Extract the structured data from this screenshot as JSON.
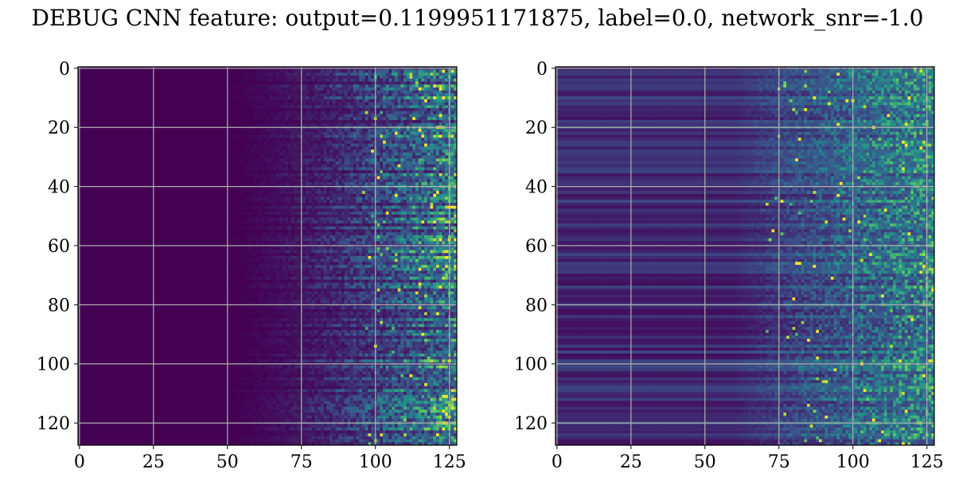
{
  "figure": {
    "title": "DEBUG CNN feature: output=0.1199951171875, label=0.0, network_snr=-1.0"
  },
  "chart_data": [
    {
      "type": "heatmap",
      "title": "",
      "xlabel": "",
      "ylabel": "",
      "rows": 128,
      "cols": 128,
      "colormap": "viridis",
      "colors": [
        "#440154",
        "#3b528b",
        "#21918c",
        "#5ec962",
        "#fde725"
      ],
      "xlim": [
        -0.5,
        127.5
      ],
      "ylim": [
        127.5,
        -0.5
      ],
      "y_inverted": true,
      "grid": true,
      "x_ticks": [
        0,
        25,
        50,
        75,
        100,
        125
      ],
      "y_ticks": [
        0,
        20,
        40,
        60,
        80,
        100,
        120
      ],
      "x_tick_labels": [
        "0",
        "25",
        "50",
        "75",
        "100",
        "125"
      ],
      "y_tick_labels": [
        "0",
        "20",
        "40",
        "60",
        "80",
        "100",
        "120"
      ],
      "pattern": "values near 0 for columns 0-45, increasing toward the right with strong horizontal banding; bright yellow speckles at columns 100-125",
      "value_range": [
        0,
        1
      ]
    },
    {
      "type": "heatmap",
      "title": "",
      "xlabel": "",
      "ylabel": "",
      "rows": 128,
      "cols": 128,
      "colormap": "viridis",
      "colors": [
        "#440154",
        "#3b528b",
        "#21918c",
        "#5ec962",
        "#fde725"
      ],
      "xlim": [
        -0.5,
        127.5
      ],
      "ylim": [
        127.5,
        -0.5
      ],
      "y_inverted": true,
      "grid": true,
      "x_ticks": [
        0,
        25,
        50,
        75,
        100,
        125
      ],
      "y_ticks": [
        0,
        20,
        40,
        60,
        80,
        100,
        120
      ],
      "x_tick_labels": [
        "0",
        "25",
        "50",
        "75",
        "100",
        "125"
      ],
      "y_tick_labels": [
        "0",
        "20",
        "40",
        "60",
        "80",
        "100",
        "120"
      ],
      "pattern": "low-level horizontal banding across all columns, noisier teal/green speckles increasing beyond column 75, a few yellow points",
      "value_range": [
        0,
        1
      ]
    }
  ]
}
